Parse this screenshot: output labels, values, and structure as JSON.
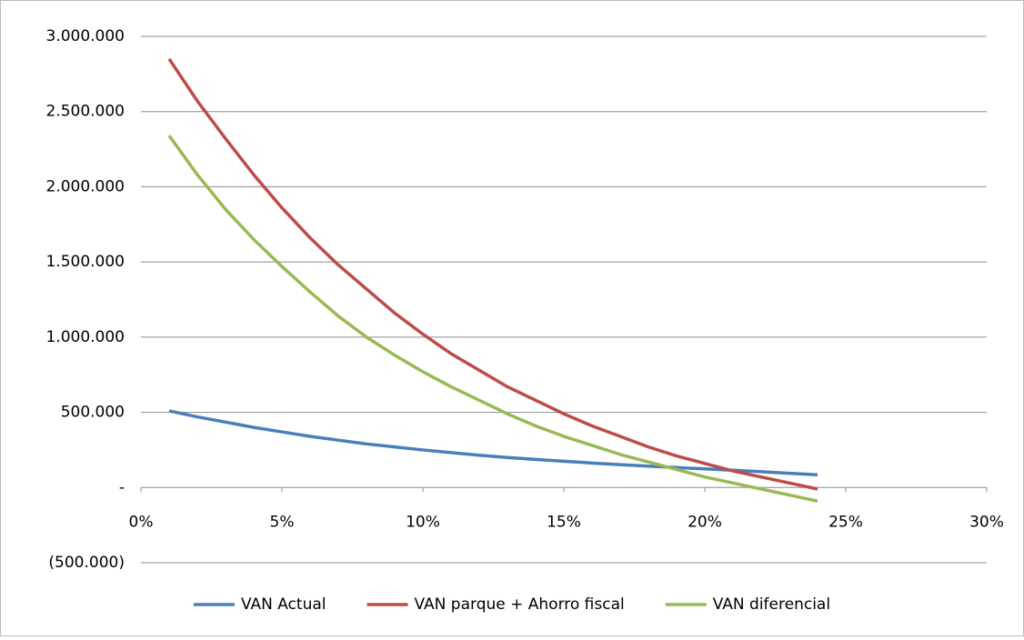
{
  "chart_data": {
    "type": "line",
    "x": [
      1,
      2,
      3,
      4,
      5,
      6,
      7,
      8,
      9,
      10,
      11,
      12,
      13,
      14,
      15,
      16,
      17,
      18,
      19,
      20,
      21,
      22,
      23,
      24
    ],
    "series": [
      {
        "name": "VAN Actual",
        "color": "#4a7ebb",
        "values": [
          510000,
          470000,
          435000,
          400000,
          370000,
          340000,
          315000,
          290000,
          270000,
          250000,
          232000,
          215000,
          200000,
          187000,
          175000,
          163000,
          152000,
          142000,
          133000,
          124000,
          115000,
          105000,
          95000,
          85000
        ]
      },
      {
        "name": "VAN parque + Ahorro fiscal",
        "color": "#be4b48",
        "values": [
          2850000,
          2570000,
          2320000,
          2080000,
          1860000,
          1660000,
          1480000,
          1320000,
          1160000,
          1020000,
          890000,
          780000,
          670000,
          580000,
          490000,
          410000,
          340000,
          270000,
          210000,
          160000,
          110000,
          70000,
          30000,
          -10000
        ]
      },
      {
        "name": "VAN diferencial",
        "color": "#98b954",
        "values": [
          2340000,
          2080000,
          1850000,
          1650000,
          1470000,
          1300000,
          1140000,
          1000000,
          880000,
          770000,
          670000,
          580000,
          490000,
          410000,
          340000,
          280000,
          220000,
          170000,
          120000,
          70000,
          30000,
          -10000,
          -50000,
          -90000
        ]
      }
    ],
    "xlim": [
      0,
      30
    ],
    "xticks": [
      {
        "value": 0,
        "label": "0%"
      },
      {
        "value": 5,
        "label": "5%"
      },
      {
        "value": 10,
        "label": "10%"
      },
      {
        "value": 15,
        "label": "15%"
      },
      {
        "value": 20,
        "label": "20%"
      },
      {
        "value": 25,
        "label": "25%"
      },
      {
        "value": 30,
        "label": "30%"
      }
    ],
    "ylim": [
      -500000,
      3000000
    ],
    "yticks": [
      {
        "value": 3000000,
        "label": "3.000.000"
      },
      {
        "value": 2500000,
        "label": "2.500.000"
      },
      {
        "value": 2000000,
        "label": "2.000.000"
      },
      {
        "value": 1500000,
        "label": "1.500.000"
      },
      {
        "value": 1000000,
        "label": "1.000.000"
      },
      {
        "value": 500000,
        "label": "500.000"
      },
      {
        "value": 0,
        "label": "-"
      },
      {
        "value": -500000,
        "label": "(500.000)"
      }
    ],
    "grid": true,
    "legend": "bottom"
  }
}
